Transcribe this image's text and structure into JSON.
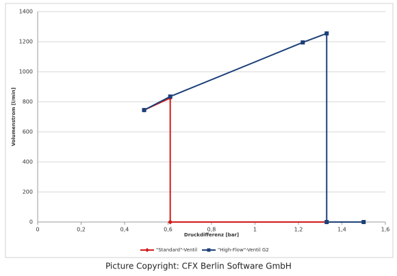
{
  "chart_data": {
    "type": "line",
    "x_label": "Druckdifferenz [bar]",
    "y_label": "Volumenstrom [l/min]",
    "xlim": [
      0,
      1.6
    ],
    "xticks": [
      0,
      {
        "value": 0.2,
        "label": "0,2"
      },
      {
        "value": 0.4,
        "label": "0,4"
      },
      {
        "value": 0.6,
        "label": "0,6"
      },
      {
        "value": 0.8,
        "label": "0,8"
      },
      1,
      {
        "value": 1.2,
        "label": "1,2"
      },
      {
        "value": 1.4,
        "label": "1,4"
      },
      {
        "value": 1.6,
        "label": "1,6"
      }
    ],
    "ylim": [
      0,
      1400
    ],
    "yticks": [
      0,
      200,
      400,
      600,
      800,
      1000,
      1200,
      1400
    ],
    "grid": true,
    "legend": "bottom",
    "series": [
      {
        "name": "\"Standard\"-Ventil",
        "color": "#d11919",
        "marker": "diamond",
        "x": [
          0.49,
          0.61,
          0.61,
          1.33
        ],
        "y": [
          745,
          825,
          0,
          0
        ]
      },
      {
        "name": "\"High-Flow\"-Ventil G2",
        "color": "#1c3f78",
        "marker": "square",
        "x": [
          0.49,
          0.61,
          1.22,
          1.33,
          1.33,
          1.5
        ],
        "y": [
          745,
          835,
          1195,
          1255,
          0,
          0
        ]
      }
    ],
    "caption": "Picture Copyright: CFX Berlin Software GmbH"
  }
}
